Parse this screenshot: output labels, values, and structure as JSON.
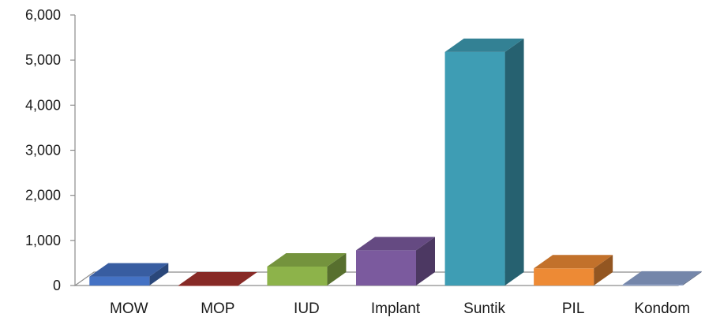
{
  "chart_data": {
    "type": "bar",
    "style": "3d-column",
    "title": "",
    "xlabel": "",
    "ylabel": "",
    "categories": [
      "MOW",
      "MOP",
      "IUD",
      "Implant",
      "Suntik",
      "PIL",
      "Kondom"
    ],
    "values": [
      200,
      0,
      420,
      780,
      5180,
      380,
      20
    ],
    "ylim": [
      0,
      6000
    ],
    "yticks": [
      0,
      1000,
      2000,
      3000,
      4000,
      5000,
      6000
    ],
    "ytick_labels": [
      "0",
      "1,000",
      "2,000",
      "3,000",
      "4,000",
      "5,000",
      "6,000"
    ],
    "grid": false,
    "legend": "none",
    "colors": [
      "#4472C4",
      "#A5332E",
      "#8DB34A",
      "#7B5A9E",
      "#3E9DB4",
      "#ED8A35",
      "#8EA3CF"
    ]
  }
}
